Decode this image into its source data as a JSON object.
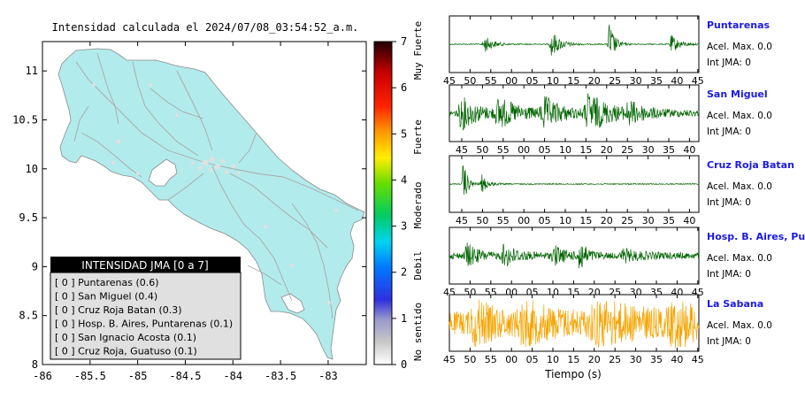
{
  "map": {
    "title": "Intensidad calculada el 2024/07/08_03:54:52_a.m.",
    "x_ticks": [
      "-86",
      "-85.5",
      "-85",
      "-84.5",
      "-84",
      "-83.5",
      "-83"
    ],
    "y_ticks": [
      "11",
      "10.5",
      "10",
      "9.5",
      "9",
      "8.5",
      "8"
    ],
    "land_color": "#b2ebeb",
    "legend": {
      "title": "INTENSIDAD JMA [0 a 7]",
      "rows": [
        "[ 0 ]  Puntarenas (0.6)",
        "[ 0 ]  San Miguel (0.4)",
        "[ 0 ]  Cruz Roja Batan (0.3)",
        "[ 0 ]  Hosp. B. Aires, Puntarenas (0.1)",
        "[ 0 ]  San Ignacio Acosta (0.1)",
        "[ 0 ]  Cruz Roja, Guatuso (0.1)"
      ]
    }
  },
  "colorbar": {
    "ticks": [
      "7",
      "6",
      "5",
      "4",
      "3",
      "2",
      "1",
      "0"
    ],
    "category_labels": [
      "Muy Fuerte",
      "Fuerte",
      "Moderado",
      "Debil",
      "No sentido"
    ]
  },
  "seismo": {
    "x_ticks": [
      "45",
      "50",
      "55",
      "00",
      "05",
      "10",
      "15",
      "20",
      "25",
      "30",
      "35",
      "40",
      "45"
    ],
    "xlabel": "Tiempo (s)",
    "accel_text": "Acel. Max. 0.0",
    "int_text": "Int JMA: 0",
    "panels": [
      {
        "station": "Puntarenas",
        "color": "#006400"
      },
      {
        "station": "San Miguel",
        "color": "#006400"
      },
      {
        "station": "Cruz Roja Batan",
        "color": "#006400"
      },
      {
        "station": "Hosp. B. Aires, Puntare",
        "color": "#006400"
      },
      {
        "station": "La Sabana",
        "color": "#f5a400"
      }
    ]
  },
  "chart_data": [
    {
      "type": "scatter",
      "title": "Intensidad calculada el 2024/07/08_03:54:52_a.m.",
      "xlim": [
        -86,
        -82.6
      ],
      "ylim": [
        8,
        11.3
      ],
      "grid": false,
      "legend_placement": "bottom-left",
      "series": [
        {
          "name": "INTENSIDAD JMA [0 a 7]",
          "stations": [
            "Puntarenas",
            "San Miguel",
            "Cruz Roja Batan",
            "Hosp. B. Aires, Puntarenas",
            "San Ignacio Acosta",
            "Cruz Roja, Guatuso"
          ],
          "intensity_class": [
            0,
            0,
            0,
            0,
            0,
            0
          ],
          "intensity_value": [
            0.6,
            0.4,
            0.3,
            0.1,
            0.1,
            0.1
          ]
        }
      ]
    },
    {
      "type": "heatmap",
      "ylim": [
        0,
        7
      ],
      "categories": [
        "No sentido",
        "Debil",
        "Moderado",
        "Fuerte",
        "Muy Fuerte"
      ]
    },
    {
      "type": "line",
      "xlabel": "Tiempo (s)",
      "series": [
        {
          "name": "Puntarenas",
          "acel_max": 0.0,
          "int_jma": 0
        },
        {
          "name": "San Miguel",
          "acel_max": 0.0,
          "int_jma": 0
        },
        {
          "name": "Cruz Roja Batan",
          "acel_max": 0.0,
          "int_jma": 0
        },
        {
          "name": "Hosp. B. Aires, Puntare",
          "acel_max": 0.0,
          "int_jma": 0
        },
        {
          "name": "La Sabana",
          "acel_max": 0.0,
          "int_jma": 0
        }
      ]
    }
  ]
}
